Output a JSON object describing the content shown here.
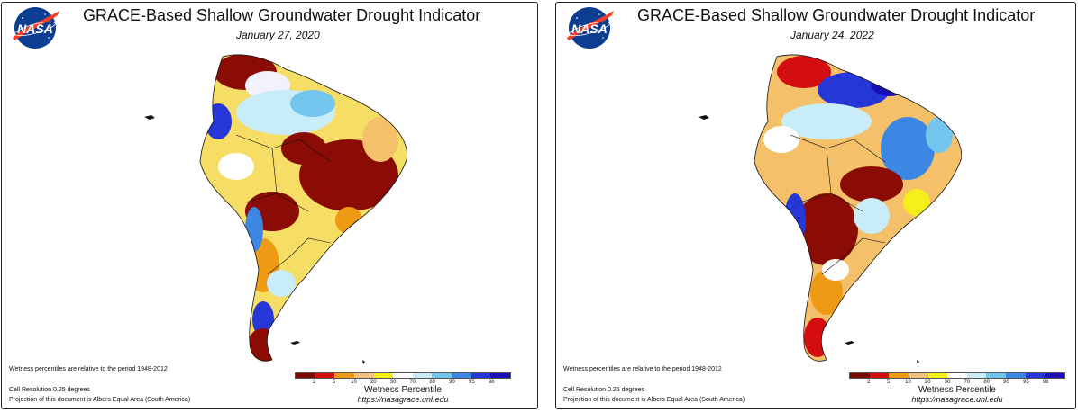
{
  "panels": [
    {
      "title": "GRACE-Based Shallow Groundwater Drought Indicator",
      "date": "January 27, 2020",
      "logo_text": "NASA",
      "notes": {
        "period": "Wetness percentiles are relative to the period 1948-2012",
        "resolution": "Cell Resolution 0.25 degrees",
        "projection": "Projection of this document is Albers Equal Area (South America)"
      },
      "legend": {
        "title": "Wetness Percentile",
        "ticks": [
          "2",
          "5",
          "10",
          "20",
          "30",
          "70",
          "80",
          "90",
          "95",
          "98"
        ],
        "url": "https://nasagrace.unl.edu"
      }
    },
    {
      "title": "GRACE-Based Shallow Groundwater Drought Indicator",
      "date": "January 24, 2022",
      "logo_text": "NASA",
      "notes": {
        "period": "Wetness percentiles are relative to the period 1948-2012",
        "resolution": "Cell Resolution 0.25 degrees",
        "projection": "Projection of this document is Albers Equal Area (South America)"
      },
      "legend": {
        "title": "Wetness Percentile",
        "ticks": [
          "2",
          "5",
          "10",
          "20",
          "30",
          "70",
          "80",
          "90",
          "95",
          "98"
        ],
        "url": "https://nasagrace.unl.edu"
      }
    }
  ],
  "legend_colors": [
    "#7a0a00",
    "#d40e0e",
    "#ef9a15",
    "#f2c27e",
    "#f7ef1a",
    "#ffffff",
    "#c9ecf9",
    "#75c6ef",
    "#3d87e4",
    "#2537d6",
    "#1a0fb5"
  ]
}
